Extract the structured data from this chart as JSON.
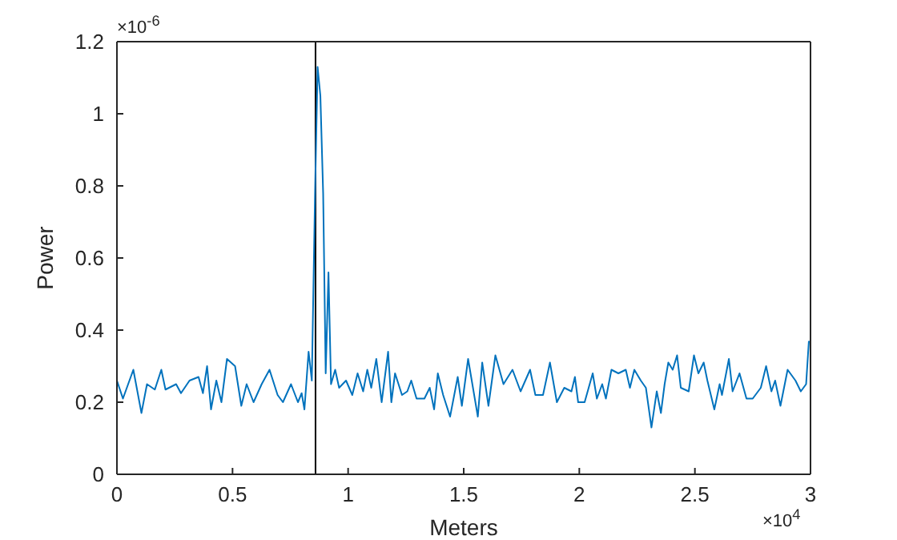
{
  "chart_data": {
    "type": "line",
    "xlabel": "Meters",
    "ylabel": "Power",
    "x": [
      0,
      0.026,
      0.071,
      0.106,
      0.13,
      0.164,
      0.192,
      0.21,
      0.256,
      0.277,
      0.314,
      0.353,
      0.372,
      0.39,
      0.407,
      0.43,
      0.452,
      0.476,
      0.511,
      0.538,
      0.561,
      0.591,
      0.626,
      0.66,
      0.695,
      0.718,
      0.753,
      0.783,
      0.799,
      0.811,
      0.829,
      0.843,
      0.857,
      0.868,
      0.88,
      0.892,
      0.903,
      0.915,
      0.926,
      0.944,
      0.961,
      0.991,
      1.018,
      1.041,
      1.065,
      1.083,
      1.1,
      1.122,
      1.145,
      1.173,
      1.187,
      1.203,
      1.233,
      1.256,
      1.273,
      1.296,
      1.33,
      1.353,
      1.372,
      1.388,
      1.411,
      1.441,
      1.474,
      1.492,
      1.519,
      1.561,
      1.58,
      1.607,
      1.637,
      1.672,
      1.711,
      1.746,
      1.787,
      1.81,
      1.843,
      1.873,
      1.903,
      1.935,
      1.966,
      1.981,
      1.995,
      2.023,
      2.058,
      2.076,
      2.099,
      2.115,
      2.139,
      2.169,
      2.201,
      2.219,
      2.238,
      2.266,
      2.288,
      2.312,
      2.335,
      2.353,
      2.369,
      2.385,
      2.404,
      2.423,
      2.439,
      2.473,
      2.496,
      2.515,
      2.538,
      2.554,
      2.584,
      2.607,
      2.617,
      2.647,
      2.663,
      2.693,
      2.723,
      2.75,
      2.785,
      2.808,
      2.831,
      2.847,
      2.87,
      2.901,
      2.935,
      2.958,
      2.981,
      2.993
    ],
    "series": [
      {
        "color": "#0072bd",
        "values": [
          0.26,
          0.21,
          0.29,
          0.17,
          0.25,
          0.235,
          0.29,
          0.235,
          0.25,
          0.225,
          0.26,
          0.27,
          0.225,
          0.3,
          0.18,
          0.26,
          0.2,
          0.32,
          0.3,
          0.19,
          0.25,
          0.2,
          0.25,
          0.29,
          0.22,
          0.2,
          0.25,
          0.2,
          0.225,
          0.18,
          0.34,
          0.26,
          0.78,
          1.13,
          1.05,
          0.78,
          0.28,
          0.56,
          0.25,
          0.29,
          0.24,
          0.26,
          0.22,
          0.28,
          0.23,
          0.29,
          0.24,
          0.32,
          0.2,
          0.34,
          0.2,
          0.28,
          0.22,
          0.23,
          0.26,
          0.21,
          0.21,
          0.24,
          0.18,
          0.28,
          0.22,
          0.16,
          0.27,
          0.19,
          0.32,
          0.16,
          0.31,
          0.19,
          0.33,
          0.25,
          0.29,
          0.23,
          0.29,
          0.22,
          0.22,
          0.31,
          0.2,
          0.24,
          0.23,
          0.27,
          0.2,
          0.2,
          0.28,
          0.21,
          0.25,
          0.21,
          0.29,
          0.28,
          0.29,
          0.24,
          0.29,
          0.26,
          0.24,
          0.13,
          0.23,
          0.17,
          0.25,
          0.31,
          0.29,
          0.33,
          0.24,
          0.23,
          0.33,
          0.28,
          0.31,
          0.26,
          0.18,
          0.25,
          0.22,
          0.32,
          0.23,
          0.28,
          0.21,
          0.21,
          0.24,
          0.3,
          0.23,
          0.26,
          0.19,
          0.29,
          0.26,
          0.23,
          0.25,
          0.37
        ]
      }
    ],
    "xlim": [
      0,
      3
    ],
    "xticks": [
      0,
      0.5,
      1,
      1.5,
      2,
      2.5,
      3
    ],
    "ylim": [
      0,
      1.2
    ],
    "yticks": [
      0,
      0.2,
      0.4,
      0.6,
      0.8,
      1,
      1.2
    ],
    "ref_lines": [
      {
        "axis": "x",
        "value": 0.859,
        "color": "#000000"
      }
    ],
    "annotations": [
      "×10$^{-6}$",
      "×10$^{4}$"
    ],
    "marker": "none",
    "line_style": "solid",
    "grid": false,
    "legend": false
  }
}
